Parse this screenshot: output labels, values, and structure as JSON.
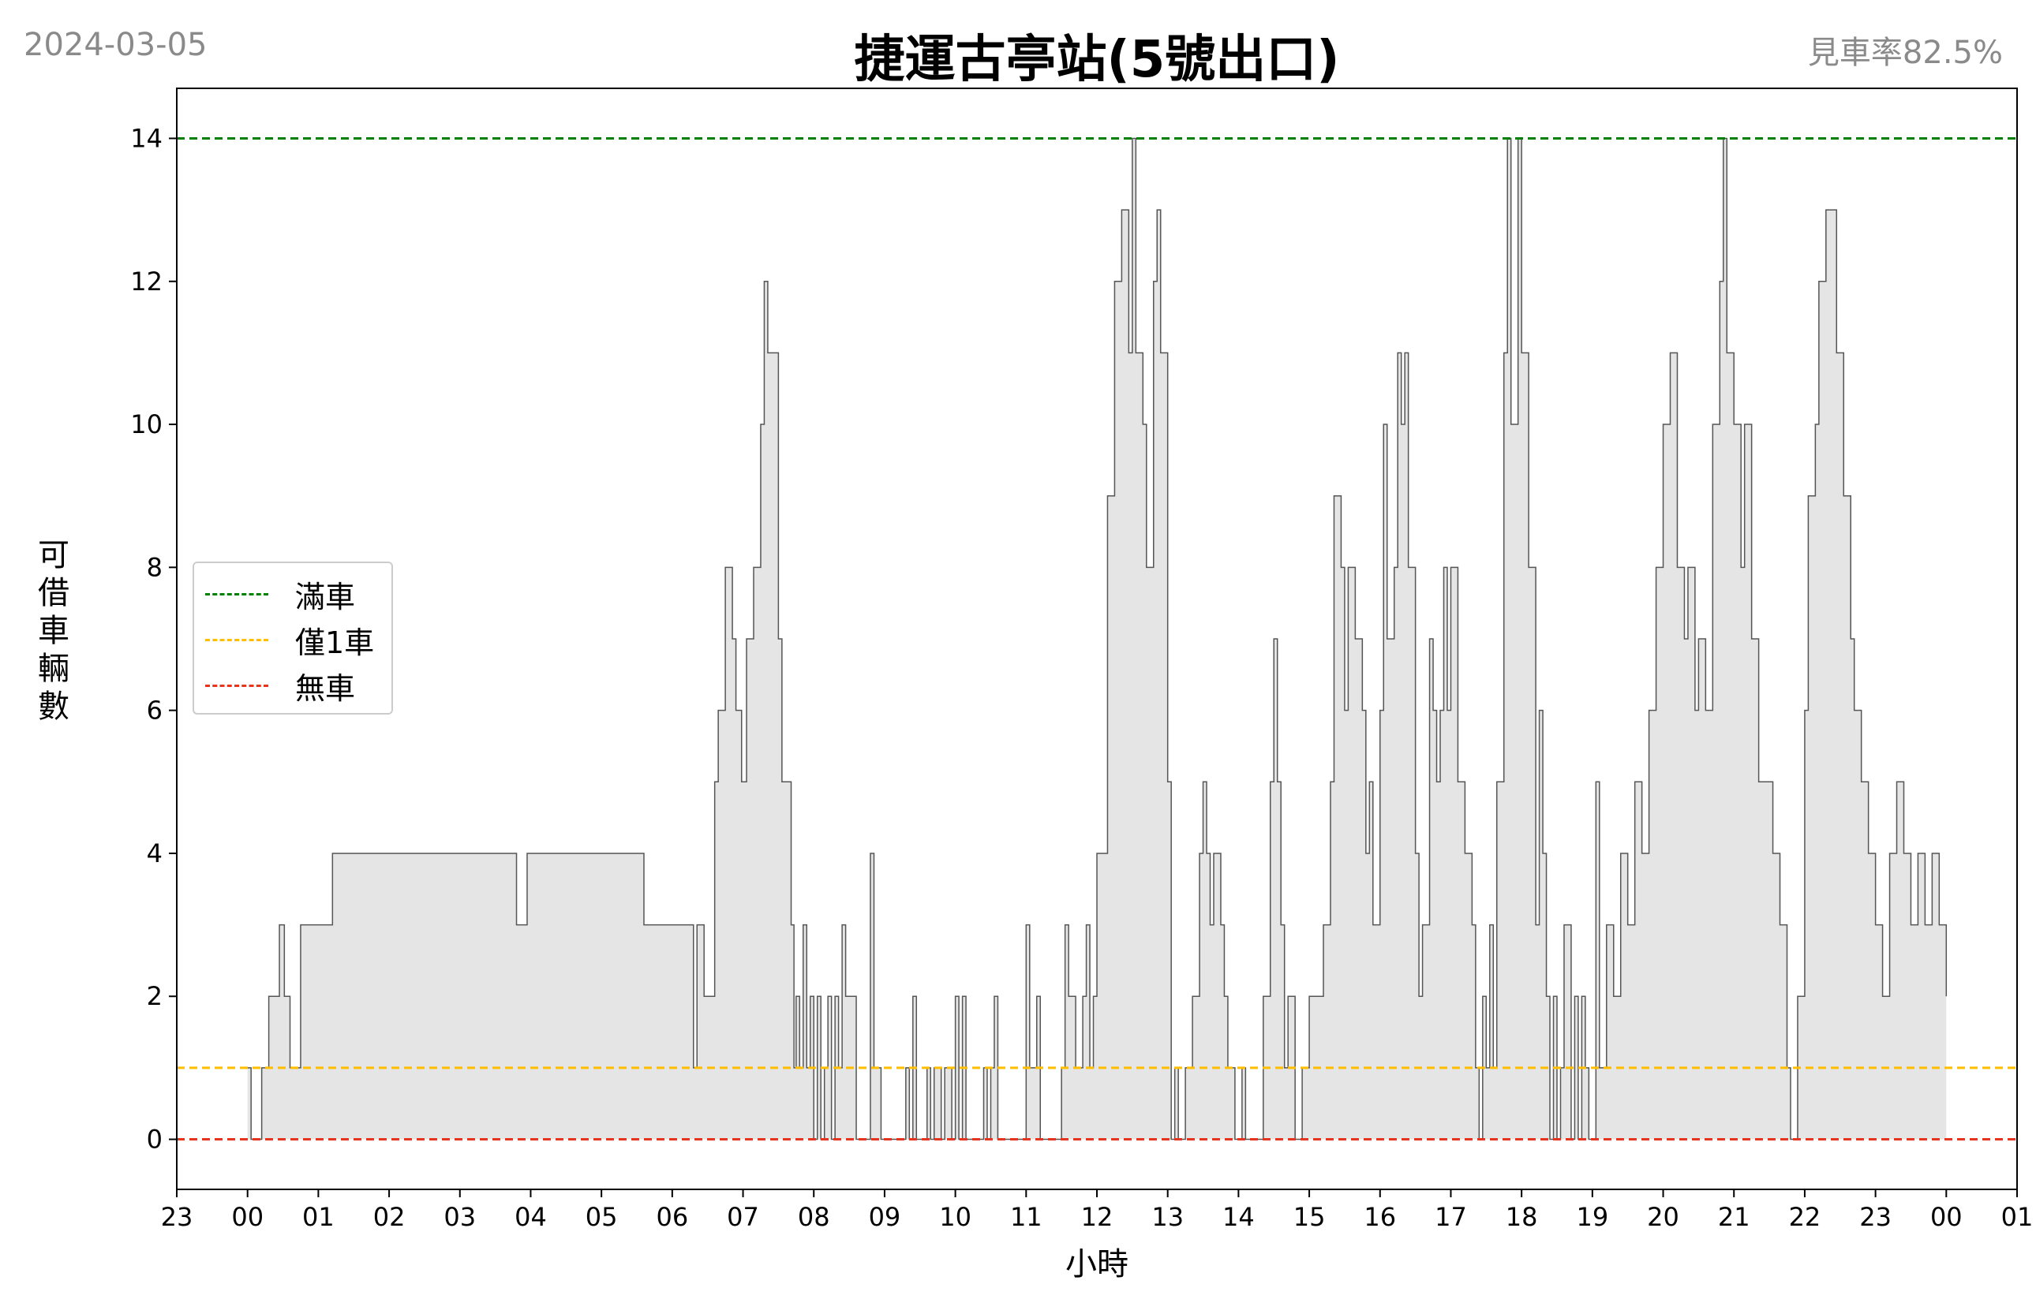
{
  "header": {
    "date": "2024-03-05",
    "title": "捷運古亭站(5號出口)",
    "availability": "見車率82.5%"
  },
  "colors": {
    "full": "#008000",
    "one": "#ffbf00",
    "empty": "#e8341c",
    "fill": "#e5e5e5",
    "line": "#555555"
  },
  "chart_data": {
    "type": "area",
    "title": "捷運古亭站(5號出口)",
    "xlabel": "小時",
    "ylabel": "可借車輛數",
    "xlim": [
      -1.0,
      25.0
    ],
    "ylim": [
      -0.7,
      14.7
    ],
    "x_ticks": [
      -1,
      0,
      1,
      2,
      3,
      4,
      5,
      6,
      7,
      8,
      9,
      10,
      11,
      12,
      13,
      14,
      15,
      16,
      17,
      18,
      19,
      20,
      21,
      22,
      23,
      24,
      25
    ],
    "x_tick_labels": [
      "23",
      "00",
      "01",
      "02",
      "03",
      "04",
      "05",
      "06",
      "07",
      "08",
      "09",
      "10",
      "11",
      "12",
      "13",
      "14",
      "15",
      "16",
      "17",
      "18",
      "19",
      "20",
      "21",
      "22",
      "23",
      "00",
      "01"
    ],
    "y_ticks": [
      0,
      2,
      4,
      6,
      8,
      10,
      12,
      14
    ],
    "reference_lines": [
      {
        "name": "滿車",
        "y": 14,
        "style": "dashed",
        "color": "#008000"
      },
      {
        "name": "僅1車",
        "y": 1,
        "style": "dashed",
        "color": "#ffbf00"
      },
      {
        "name": "無車",
        "y": 0,
        "style": "dashed",
        "color": "#e8341c"
      }
    ],
    "legend_position": "center-left",
    "grid": false,
    "series": [
      {
        "points": [
          [
            0.0,
            1
          ],
          [
            0.05,
            0
          ],
          [
            0.2,
            1
          ],
          [
            0.3,
            2
          ],
          [
            0.45,
            3
          ],
          [
            0.52,
            2
          ],
          [
            0.6,
            1
          ],
          [
            0.75,
            3
          ],
          [
            1.2,
            4
          ],
          [
            3.8,
            3
          ],
          [
            3.95,
            4
          ],
          [
            5.6,
            3
          ],
          [
            6.3,
            1
          ],
          [
            6.35,
            3
          ],
          [
            6.45,
            2
          ],
          [
            6.6,
            5
          ],
          [
            6.65,
            6
          ],
          [
            6.75,
            8
          ],
          [
            6.85,
            7
          ],
          [
            6.9,
            6
          ],
          [
            6.98,
            5
          ],
          [
            7.05,
            7
          ],
          [
            7.15,
            8
          ],
          [
            7.25,
            10
          ],
          [
            7.3,
            12
          ],
          [
            7.35,
            11
          ],
          [
            7.5,
            7
          ],
          [
            7.55,
            5
          ],
          [
            7.68,
            3
          ],
          [
            7.72,
            1
          ],
          [
            7.75,
            2
          ],
          [
            7.8,
            1
          ],
          [
            7.85,
            3
          ],
          [
            7.9,
            1
          ],
          [
            7.95,
            2
          ],
          [
            8.0,
            0
          ],
          [
            8.05,
            2
          ],
          [
            8.1,
            0
          ],
          [
            8.15,
            1
          ],
          [
            8.2,
            2
          ],
          [
            8.25,
            0
          ],
          [
            8.3,
            2
          ],
          [
            8.35,
            1
          ],
          [
            8.4,
            3
          ],
          [
            8.45,
            2
          ],
          [
            8.55,
            2
          ],
          [
            8.6,
            0
          ],
          [
            8.75,
            0
          ],
          [
            8.8,
            4
          ],
          [
            8.85,
            1
          ],
          [
            8.95,
            0
          ],
          [
            9.3,
            1
          ],
          [
            9.35,
            0
          ],
          [
            9.4,
            2
          ],
          [
            9.45,
            0
          ],
          [
            9.6,
            1
          ],
          [
            9.65,
            0
          ],
          [
            9.7,
            1
          ],
          [
            9.8,
            0
          ],
          [
            9.85,
            1
          ],
          [
            9.95,
            0
          ],
          [
            10.0,
            2
          ],
          [
            10.05,
            0
          ],
          [
            10.1,
            2
          ],
          [
            10.15,
            0
          ],
          [
            10.4,
            1
          ],
          [
            10.45,
            0
          ],
          [
            10.5,
            1
          ],
          [
            10.55,
            2
          ],
          [
            10.6,
            0
          ],
          [
            11.0,
            3
          ],
          [
            11.05,
            1
          ],
          [
            11.15,
            2
          ],
          [
            11.2,
            0
          ],
          [
            11.5,
            1
          ],
          [
            11.55,
            3
          ],
          [
            11.6,
            2
          ],
          [
            11.7,
            1
          ],
          [
            11.8,
            2
          ],
          [
            11.85,
            3
          ],
          [
            11.9,
            1
          ],
          [
            11.95,
            2
          ],
          [
            12.0,
            4
          ],
          [
            12.15,
            9
          ],
          [
            12.25,
            12
          ],
          [
            12.35,
            13
          ],
          [
            12.45,
            11
          ],
          [
            12.5,
            14
          ],
          [
            12.55,
            11
          ],
          [
            12.65,
            10
          ],
          [
            12.7,
            8
          ],
          [
            12.8,
            12
          ],
          [
            12.85,
            13
          ],
          [
            12.9,
            11
          ],
          [
            13.0,
            5
          ],
          [
            13.05,
            0
          ],
          [
            13.1,
            1
          ],
          [
            13.15,
            0
          ],
          [
            13.25,
            1
          ],
          [
            13.35,
            2
          ],
          [
            13.45,
            4
          ],
          [
            13.5,
            5
          ],
          [
            13.55,
            4
          ],
          [
            13.6,
            3
          ],
          [
            13.65,
            4
          ],
          [
            13.75,
            3
          ],
          [
            13.8,
            2
          ],
          [
            13.85,
            1
          ],
          [
            13.95,
            0
          ],
          [
            14.05,
            1
          ],
          [
            14.1,
            0
          ],
          [
            14.2,
            0
          ],
          [
            14.35,
            2
          ],
          [
            14.45,
            5
          ],
          [
            14.5,
            7
          ],
          [
            14.55,
            5
          ],
          [
            14.6,
            3
          ],
          [
            14.65,
            1
          ],
          [
            14.7,
            2
          ],
          [
            14.8,
            0
          ],
          [
            14.9,
            1
          ],
          [
            15.0,
            2
          ],
          [
            15.2,
            3
          ],
          [
            15.3,
            5
          ],
          [
            15.35,
            9
          ],
          [
            15.45,
            8
          ],
          [
            15.5,
            6
          ],
          [
            15.55,
            8
          ],
          [
            15.65,
            7
          ],
          [
            15.75,
            6
          ],
          [
            15.8,
            4
          ],
          [
            15.85,
            5
          ],
          [
            15.9,
            3
          ],
          [
            16.0,
            6
          ],
          [
            16.05,
            10
          ],
          [
            16.1,
            7
          ],
          [
            16.2,
            8
          ],
          [
            16.25,
            11
          ],
          [
            16.3,
            10
          ],
          [
            16.35,
            11
          ],
          [
            16.4,
            8
          ],
          [
            16.5,
            4
          ],
          [
            16.55,
            2
          ],
          [
            16.6,
            3
          ],
          [
            16.7,
            7
          ],
          [
            16.75,
            6
          ],
          [
            16.8,
            5
          ],
          [
            16.85,
            6
          ],
          [
            16.9,
            8
          ],
          [
            16.95,
            6
          ],
          [
            17.0,
            8
          ],
          [
            17.1,
            5
          ],
          [
            17.2,
            4
          ],
          [
            17.3,
            3
          ],
          [
            17.35,
            1
          ],
          [
            17.4,
            0
          ],
          [
            17.45,
            2
          ],
          [
            17.5,
            1
          ],
          [
            17.55,
            3
          ],
          [
            17.6,
            1
          ],
          [
            17.65,
            5
          ],
          [
            17.75,
            11
          ],
          [
            17.8,
            14
          ],
          [
            17.85,
            10
          ],
          [
            17.95,
            14
          ],
          [
            18.0,
            11
          ],
          [
            18.1,
            8
          ],
          [
            18.2,
            3
          ],
          [
            18.25,
            6
          ],
          [
            18.3,
            4
          ],
          [
            18.35,
            2
          ],
          [
            18.4,
            0
          ],
          [
            18.45,
            2
          ],
          [
            18.5,
            0
          ],
          [
            18.55,
            1
          ],
          [
            18.6,
            3
          ],
          [
            18.7,
            0
          ],
          [
            18.75,
            2
          ],
          [
            18.8,
            0
          ],
          [
            18.85,
            2
          ],
          [
            18.9,
            1
          ],
          [
            18.95,
            0
          ],
          [
            19.05,
            5
          ],
          [
            19.1,
            1
          ],
          [
            19.2,
            3
          ],
          [
            19.3,
            2
          ],
          [
            19.4,
            4
          ],
          [
            19.5,
            3
          ],
          [
            19.6,
            5
          ],
          [
            19.7,
            4
          ],
          [
            19.8,
            6
          ],
          [
            19.9,
            8
          ],
          [
            20.0,
            10
          ],
          [
            20.1,
            11
          ],
          [
            20.2,
            8
          ],
          [
            20.3,
            7
          ],
          [
            20.35,
            8
          ],
          [
            20.45,
            6
          ],
          [
            20.5,
            7
          ],
          [
            20.6,
            6
          ],
          [
            20.7,
            10
          ],
          [
            20.8,
            12
          ],
          [
            20.85,
            14
          ],
          [
            20.9,
            11
          ],
          [
            21.0,
            10
          ],
          [
            21.1,
            8
          ],
          [
            21.15,
            10
          ],
          [
            21.25,
            7
          ],
          [
            21.35,
            5
          ],
          [
            21.55,
            4
          ],
          [
            21.65,
            3
          ],
          [
            21.75,
            1
          ],
          [
            21.8,
            0
          ],
          [
            21.9,
            2
          ],
          [
            22.0,
            6
          ],
          [
            22.05,
            9
          ],
          [
            22.15,
            10
          ],
          [
            22.2,
            12
          ],
          [
            22.3,
            13
          ],
          [
            22.45,
            11
          ],
          [
            22.55,
            9
          ],
          [
            22.65,
            7
          ],
          [
            22.7,
            6
          ],
          [
            22.8,
            5
          ],
          [
            22.9,
            4
          ],
          [
            23.0,
            3
          ],
          [
            23.1,
            2
          ],
          [
            23.2,
            4
          ],
          [
            23.3,
            5
          ],
          [
            23.4,
            4
          ],
          [
            23.5,
            3
          ],
          [
            23.6,
            4
          ],
          [
            23.7,
            3
          ],
          [
            23.8,
            4
          ],
          [
            23.9,
            3
          ],
          [
            24.0,
            2
          ]
        ]
      }
    ]
  },
  "legend": {
    "items": [
      {
        "label": "滿車"
      },
      {
        "label": "僅1車"
      },
      {
        "label": "無車"
      }
    ]
  }
}
